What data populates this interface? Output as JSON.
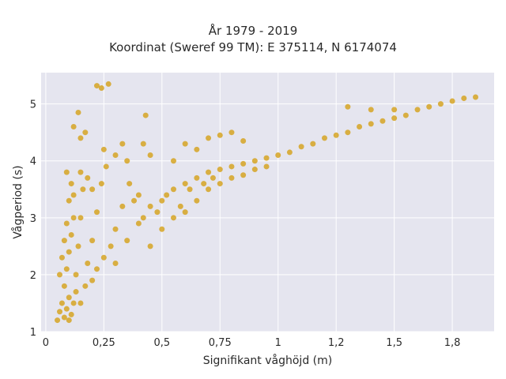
{
  "chart_data": {
    "type": "scatter",
    "title": "År 1979 - 2019",
    "subtitle": "Koordinat (Sweref 99 TM): E 375114, N 6174074",
    "xlabel": "Signifikant våghöjd (m)",
    "ylabel": "Vågperiod (s)",
    "xlim": [
      -0.02,
      1.93
    ],
    "ylim": [
      1.0,
      5.55
    ],
    "xticks": [
      0,
      0.25,
      0.5,
      0.75,
      1.0,
      1.25,
      1.5,
      1.75
    ],
    "xtick_labels": [
      "0",
      "0,25",
      "0,5",
      "0,75",
      "1",
      "1,2",
      "1,5",
      "1,8"
    ],
    "yticks": [
      1,
      2,
      3,
      4,
      5
    ],
    "ytick_labels": [
      "1",
      "2",
      "3",
      "4",
      "5"
    ],
    "grid": true,
    "legend": "none",
    "series": [
      {
        "color": "#d4a017",
        "points": [
          [
            0.05,
            1.2
          ],
          [
            0.06,
            1.35
          ],
          [
            0.07,
            1.5
          ],
          [
            0.08,
            1.25
          ],
          [
            0.09,
            1.4
          ],
          [
            0.1,
            1.2
          ],
          [
            0.1,
            1.6
          ],
          [
            0.11,
            1.3
          ],
          [
            0.12,
            1.5
          ],
          [
            0.08,
            1.8
          ],
          [
            0.09,
            2.1
          ],
          [
            0.1,
            2.4
          ],
          [
            0.11,
            2.7
          ],
          [
            0.12,
            3.0
          ],
          [
            0.1,
            3.3
          ],
          [
            0.11,
            3.6
          ],
          [
            0.09,
            3.8
          ],
          [
            0.13,
            2.0
          ],
          [
            0.14,
            2.5
          ],
          [
            0.15,
            3.0
          ],
          [
            0.16,
            3.5
          ],
          [
            0.13,
            1.7
          ],
          [
            0.15,
            1.5
          ],
          [
            0.17,
            1.8
          ],
          [
            0.18,
            2.2
          ],
          [
            0.2,
            2.6
          ],
          [
            0.22,
            3.1
          ],
          [
            0.24,
            3.6
          ],
          [
            0.26,
            3.9
          ],
          [
            0.2,
            1.9
          ],
          [
            0.22,
            2.1
          ],
          [
            0.25,
            2.3
          ],
          [
            0.28,
            2.5
          ],
          [
            0.3,
            2.8
          ],
          [
            0.33,
            3.2
          ],
          [
            0.36,
            3.6
          ],
          [
            0.4,
            3.4
          ],
          [
            0.3,
            2.2
          ],
          [
            0.35,
            2.6
          ],
          [
            0.4,
            2.9
          ],
          [
            0.45,
            3.2
          ],
          [
            0.5,
            3.3
          ],
          [
            0.55,
            3.5
          ],
          [
            0.6,
            3.6
          ],
          [
            0.65,
            3.7
          ],
          [
            0.7,
            3.8
          ],
          [
            0.75,
            3.85
          ],
          [
            0.8,
            3.9
          ],
          [
            0.85,
            3.95
          ],
          [
            0.9,
            4.0
          ],
          [
            0.95,
            4.05
          ],
          [
            1.0,
            4.1
          ],
          [
            1.05,
            4.15
          ],
          [
            1.1,
            4.25
          ],
          [
            1.15,
            4.3
          ],
          [
            1.2,
            4.4
          ],
          [
            1.25,
            4.45
          ],
          [
            1.3,
            4.5
          ],
          [
            1.35,
            4.6
          ],
          [
            1.4,
            4.65
          ],
          [
            1.45,
            4.7
          ],
          [
            1.5,
            4.75
          ],
          [
            1.55,
            4.8
          ],
          [
            1.6,
            4.9
          ],
          [
            1.65,
            4.95
          ],
          [
            1.7,
            5.0
          ],
          [
            1.75,
            5.05
          ],
          [
            1.8,
            5.1
          ],
          [
            1.85,
            5.12
          ],
          [
            0.45,
            2.5
          ],
          [
            0.5,
            2.8
          ],
          [
            0.55,
            3.0
          ],
          [
            0.6,
            3.1
          ],
          [
            0.65,
            3.3
          ],
          [
            0.7,
            3.5
          ],
          [
            0.75,
            3.6
          ],
          [
            0.8,
            3.7
          ],
          [
            0.85,
            3.75
          ],
          [
            0.9,
            3.85
          ],
          [
            0.95,
            3.9
          ],
          [
            0.22,
            5.32
          ],
          [
            0.24,
            5.28
          ],
          [
            0.27,
            5.35
          ],
          [
            0.14,
            4.85
          ],
          [
            0.43,
            4.8
          ],
          [
            0.12,
            4.6
          ],
          [
            0.15,
            4.4
          ],
          [
            0.17,
            4.5
          ],
          [
            0.3,
            4.1
          ],
          [
            0.25,
            4.2
          ],
          [
            0.33,
            4.3
          ],
          [
            0.35,
            4.0
          ],
          [
            0.42,
            4.3
          ],
          [
            0.45,
            4.1
          ],
          [
            0.55,
            4.0
          ],
          [
            0.6,
            4.3
          ],
          [
            0.65,
            4.2
          ],
          [
            0.7,
            4.4
          ],
          [
            0.75,
            4.45
          ],
          [
            0.8,
            4.5
          ],
          [
            0.85,
            4.35
          ],
          [
            1.3,
            4.95
          ],
          [
            1.4,
            4.9
          ],
          [
            1.5,
            4.9
          ],
          [
            0.06,
            2.0
          ],
          [
            0.07,
            2.3
          ],
          [
            0.08,
            2.6
          ],
          [
            0.09,
            2.9
          ],
          [
            0.2,
            3.5
          ],
          [
            0.18,
            3.7
          ],
          [
            0.15,
            3.8
          ],
          [
            0.12,
            3.4
          ],
          [
            0.38,
            3.3
          ],
          [
            0.42,
            3.0
          ],
          [
            0.48,
            3.1
          ],
          [
            0.52,
            3.4
          ],
          [
            0.58,
            3.2
          ],
          [
            0.62,
            3.5
          ],
          [
            0.68,
            3.6
          ],
          [
            0.72,
            3.7
          ]
        ]
      }
    ]
  }
}
